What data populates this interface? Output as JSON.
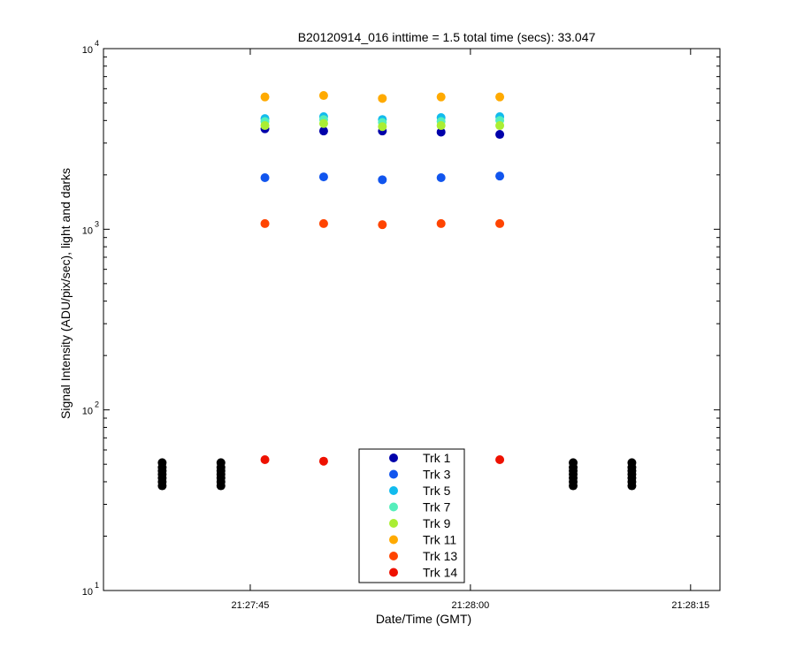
{
  "chart_data": {
    "type": "scatter",
    "title": "B20120914_016 inttime = 1.5 total time (secs): 33.047",
    "xlabel": "Date/Time (GMT)",
    "ylabel": "Signal Intensity (ADU/pix/sec), light and darks",
    "x_range": [
      "21:27:35",
      "21:28:17"
    ],
    "x_ticks": [
      "21:27:45",
      "21:28:00",
      "21:28:15"
    ],
    "y_scale": "log",
    "ylim": [
      10,
      10000
    ],
    "y_tick_labels": [
      {
        "value": 10,
        "base": "10",
        "exp": "1"
      },
      {
        "value": 100,
        "base": "10",
        "exp": "2"
      },
      {
        "value": 1000,
        "base": "10",
        "exp": "3"
      },
      {
        "value": 10000,
        "base": "10",
        "exp": "4"
      }
    ],
    "grid": false,
    "legend_position": "bottom-center",
    "light_times": [
      "21:27:46",
      "21:27:50",
      "21:27:54",
      "21:27:58",
      "21:28:02"
    ],
    "series": [
      {
        "name": "Trk 1",
        "color": "#0000aa",
        "values": [
          3600,
          3500,
          3500,
          3450,
          3350
        ]
      },
      {
        "name": "Trk 3",
        "color": "#1155ee",
        "values": [
          1930,
          1950,
          1880,
          1930,
          1970
        ]
      },
      {
        "name": "Trk 5",
        "color": "#11bbee",
        "values": [
          4100,
          4200,
          4050,
          4150,
          4200
        ]
      },
      {
        "name": "Trk 7",
        "color": "#55eebb",
        "values": [
          3950,
          4050,
          3900,
          3950,
          4000
        ]
      },
      {
        "name": "Trk 9",
        "color": "#aaee33",
        "values": [
          3750,
          3850,
          3700,
          3750,
          3750
        ]
      },
      {
        "name": "Trk 11",
        "color": "#ffaa00",
        "values": [
          5400,
          5500,
          5300,
          5400,
          5400
        ]
      },
      {
        "name": "Trk 13",
        "color": "#ff4400",
        "values": [
          1075,
          1075,
          1060,
          1075,
          1075
        ]
      },
      {
        "name": "Trk 14",
        "color": "#ee1100",
        "values": [
          53,
          52,
          null,
          null,
          53
        ]
      }
    ],
    "dark_color": "#000000",
    "dark_times": [
      "21:27:39",
      "21:27:43",
      "21:28:07",
      "21:28:11"
    ],
    "dark_values": [
      38,
      40,
      42,
      44,
      46,
      48,
      51
    ]
  }
}
